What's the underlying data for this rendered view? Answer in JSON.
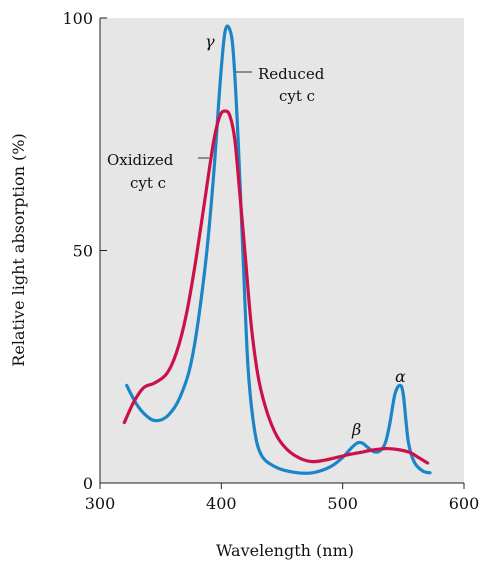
{
  "chart_data": {
    "type": "line",
    "xlabel": "Wavelength (nm)",
    "ylabel": "Relative light absorption (%)",
    "xlim": [
      300,
      600
    ],
    "ylim": [
      0,
      100
    ],
    "xticks": [
      "300",
      "400",
      "500",
      "600"
    ],
    "yticks": [
      "0",
      "50",
      "100"
    ],
    "grid": false,
    "background": "#e6e6e6",
    "series": [
      {
        "key": "reduced",
        "color": "#1a86c8",
        "points": [
          [
            322,
            21
          ],
          [
            330,
            17
          ],
          [
            338,
            14.5
          ],
          [
            346,
            13.4
          ],
          [
            356,
            14.5
          ],
          [
            366,
            18.5
          ],
          [
            376,
            27
          ],
          [
            386,
            45
          ],
          [
            393,
            64
          ],
          [
            399,
            86
          ],
          [
            403,
            97
          ],
          [
            407,
            97.5
          ],
          [
            410,
            92
          ],
          [
            414,
            73
          ],
          [
            418,
            48
          ],
          [
            422,
            25
          ],
          [
            427,
            12
          ],
          [
            433,
            6
          ],
          [
            445,
            3.4
          ],
          [
            460,
            2.3
          ],
          [
            475,
            2.2
          ],
          [
            490,
            3.5
          ],
          [
            500,
            5.5
          ],
          [
            507,
            7.5
          ],
          [
            512,
            8.6
          ],
          [
            516,
            8.6
          ],
          [
            520,
            7.8
          ],
          [
            525,
            6.8
          ],
          [
            530,
            6.8
          ],
          [
            535,
            8.5
          ],
          [
            539,
            13
          ],
          [
            543,
            19
          ],
          [
            547,
            21
          ],
          [
            550,
            19
          ],
          [
            554,
            9
          ],
          [
            559,
            4.5
          ],
          [
            566,
            2.6
          ],
          [
            572,
            2.2
          ]
        ]
      },
      {
        "key": "oxidized",
        "color": "#cc1149",
        "points": [
          [
            320,
            13
          ],
          [
            328,
            17.5
          ],
          [
            336,
            20.5
          ],
          [
            345,
            21.5
          ],
          [
            355,
            23.5
          ],
          [
            363,
            28
          ],
          [
            371,
            36
          ],
          [
            379,
            48
          ],
          [
            387,
            62
          ],
          [
            394,
            74
          ],
          [
            399,
            79
          ],
          [
            403,
            80
          ],
          [
            407,
            79
          ],
          [
            411,
            74
          ],
          [
            415,
            63
          ],
          [
            420,
            48
          ],
          [
            425,
            33
          ],
          [
            431,
            22
          ],
          [
            438,
            15
          ],
          [
            446,
            10
          ],
          [
            455,
            7
          ],
          [
            465,
            5.3
          ],
          [
            475,
            4.6
          ],
          [
            485,
            4.9
          ],
          [
            495,
            5.5
          ],
          [
            505,
            6.1
          ],
          [
            515,
            6.6
          ],
          [
            525,
            7.1
          ],
          [
            535,
            7.4
          ],
          [
            545,
            7.2
          ],
          [
            555,
            6.6
          ],
          [
            563,
            5.4
          ],
          [
            570,
            4.3
          ]
        ]
      }
    ],
    "annotations": {
      "reduced_label_line1": "Reduced",
      "reduced_label_line2": "cyt c",
      "oxidized_label_line1": "Oxidized",
      "oxidized_label_line2": "cyt c",
      "gamma": "γ",
      "beta": "β",
      "alpha": "α"
    }
  }
}
